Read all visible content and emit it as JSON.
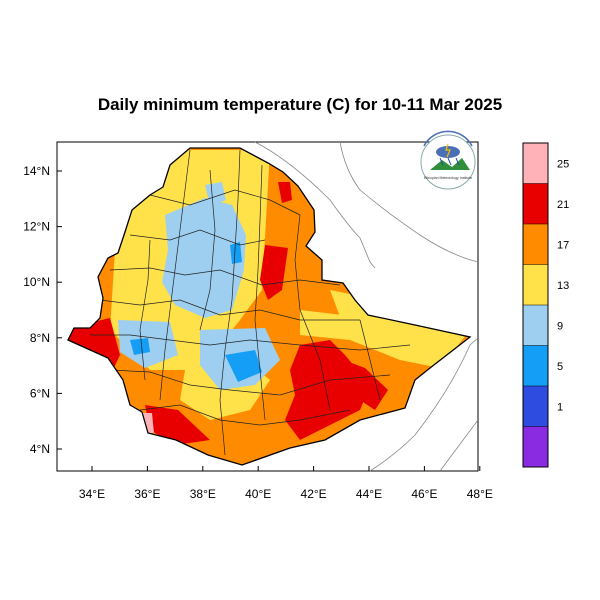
{
  "title": "Daily minimum temperature (C) for 10-11 Mar 2025",
  "map": {
    "region": "Ethiopia",
    "variable": "Daily minimum temperature",
    "units": "C",
    "x_ticks": [
      "34°E",
      "36°E",
      "38°E",
      "40°E",
      "42°E",
      "44°E",
      "46°E",
      "48°E"
    ],
    "y_ticks": [
      "14°N",
      "12°N",
      "10°N",
      "8°N",
      "6°N",
      "4°N"
    ],
    "lon_range": [
      33,
      48.2
    ],
    "lat_range": [
      3.2,
      15.1
    ]
  },
  "colorbar": {
    "labels": [
      "1",
      "5",
      "9",
      "13",
      "17",
      "21",
      "25"
    ],
    "colors": [
      "#8a2be2",
      "#2e4de0",
      "#149ef5",
      "#9ecff0",
      "#ffe24a",
      "#ff8c00",
      "#e80000",
      "#ffb3b8"
    ]
  },
  "logo": {
    "text": "Ethiopian Meteorology Institute",
    "icon": "weather-logo"
  }
}
